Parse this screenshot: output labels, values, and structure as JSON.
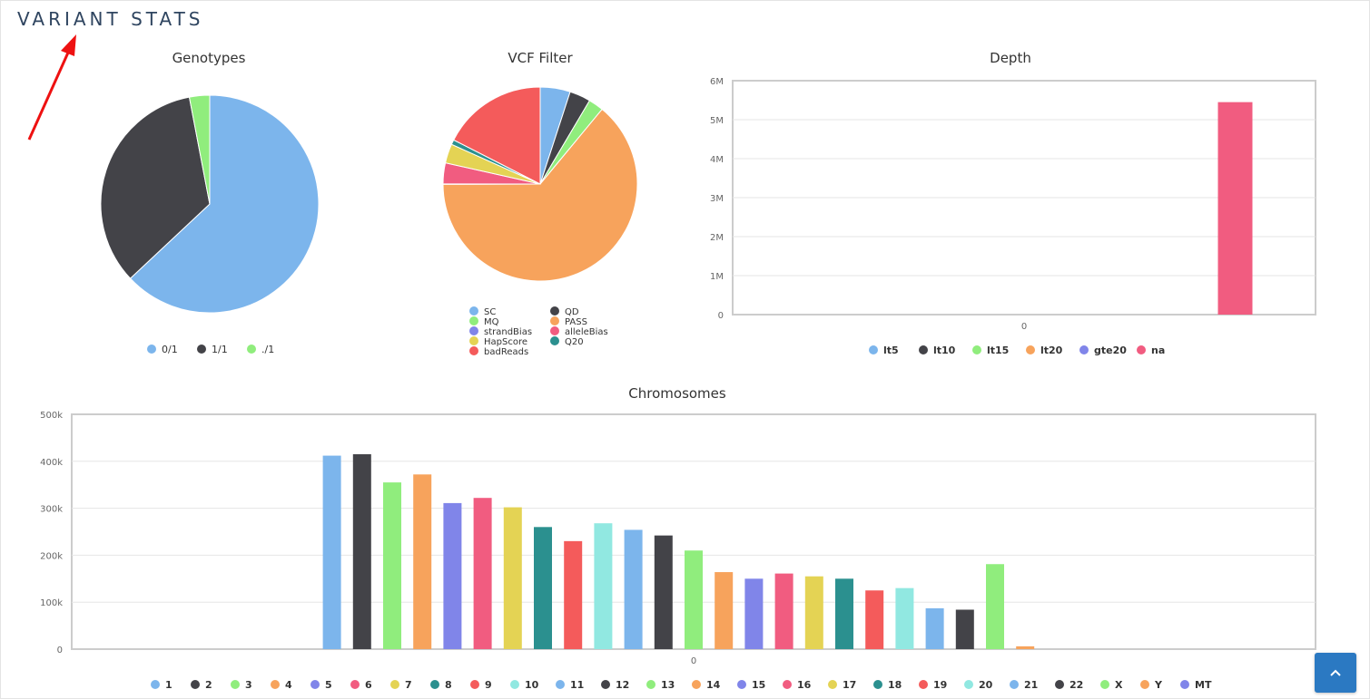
{
  "page": {
    "title": "VARIANT STATS"
  },
  "colors": {
    "palette": [
      "#7cb5ec",
      "#434348",
      "#90ed7d",
      "#f7a35c",
      "#8085e9",
      "#f15c80",
      "#e4d354",
      "#2b908f",
      "#f45b5b",
      "#91e8e1"
    ],
    "annotation_arrow": "#ee1111",
    "scroll_button": "#2b79c2"
  },
  "icons": {
    "scroll_top": "chevron-up-icon",
    "annotation": "red-arrow"
  },
  "chart_data": [
    {
      "id": "genotypes",
      "type": "pie",
      "title": "Genotypes",
      "legend": "bottom",
      "slices": [
        {
          "name": "0/1",
          "value": 63.0,
          "color": "#7cb5ec"
        },
        {
          "name": "1/1",
          "value": 34.0,
          "color": "#434348"
        },
        {
          "name": "./1",
          "value": 3.0,
          "color": "#90ed7d"
        }
      ]
    },
    {
      "id": "vcf_filter",
      "type": "pie",
      "title": "VCF Filter",
      "legend": "bottom",
      "slices": [
        {
          "name": "SC",
          "value": 5.0,
          "color": "#7cb5ec"
        },
        {
          "name": "QD",
          "value": 3.5,
          "color": "#434348"
        },
        {
          "name": "MQ",
          "value": 2.5,
          "color": "#90ed7d"
        },
        {
          "name": "PASS",
          "value": 64.0,
          "color": "#f7a35c"
        },
        {
          "name": "strandBias",
          "value": 0.05,
          "color": "#8085e9"
        },
        {
          "name": "alleleBias",
          "value": 3.5,
          "color": "#f15c80"
        },
        {
          "name": "HapScore",
          "value": 3.2,
          "color": "#e4d354"
        },
        {
          "name": "Q20",
          "value": 0.8,
          "color": "#2b908f"
        },
        {
          "name": "badReads",
          "value": 17.5,
          "color": "#f45b5b"
        }
      ]
    },
    {
      "id": "depth",
      "type": "bar",
      "title": "Depth",
      "legend": "bottom",
      "categories": [
        "0"
      ],
      "ylim": [
        0,
        6000000
      ],
      "yticks": [
        "0",
        "1M",
        "2M",
        "3M",
        "4M",
        "5M",
        "6M"
      ],
      "series": [
        {
          "name": "lt5",
          "value": 0,
          "color": "#7cb5ec"
        },
        {
          "name": "lt10",
          "value": 0,
          "color": "#434348"
        },
        {
          "name": "lt15",
          "value": 0,
          "color": "#90ed7d"
        },
        {
          "name": "lt20",
          "value": 0,
          "color": "#f7a35c"
        },
        {
          "name": "gte20",
          "value": 0,
          "color": "#8085e9"
        },
        {
          "name": "na",
          "value": 5450000,
          "color": "#f15c80"
        }
      ]
    },
    {
      "id": "chromosomes",
      "type": "bar",
      "title": "Chromosomes",
      "legend": "bottom",
      "categories": [
        "0"
      ],
      "ylim": [
        0,
        500000
      ],
      "yticks": [
        "0",
        "100k",
        "200k",
        "300k",
        "400k",
        "500k"
      ],
      "series": [
        {
          "name": "1",
          "value": 412000,
          "color": "#7cb5ec"
        },
        {
          "name": "2",
          "value": 415000,
          "color": "#434348"
        },
        {
          "name": "3",
          "value": 355000,
          "color": "#90ed7d"
        },
        {
          "name": "4",
          "value": 372000,
          "color": "#f7a35c"
        },
        {
          "name": "5",
          "value": 311000,
          "color": "#8085e9"
        },
        {
          "name": "6",
          "value": 322000,
          "color": "#f15c80"
        },
        {
          "name": "7",
          "value": 302000,
          "color": "#e4d354"
        },
        {
          "name": "8",
          "value": 260000,
          "color": "#2b908f"
        },
        {
          "name": "9",
          "value": 230000,
          "color": "#f45b5b"
        },
        {
          "name": "10",
          "value": 268000,
          "color": "#91e8e1"
        },
        {
          "name": "11",
          "value": 254000,
          "color": "#7cb5ec"
        },
        {
          "name": "12",
          "value": 242000,
          "color": "#434348"
        },
        {
          "name": "13",
          "value": 210000,
          "color": "#90ed7d"
        },
        {
          "name": "14",
          "value": 164000,
          "color": "#f7a35c"
        },
        {
          "name": "15",
          "value": 150000,
          "color": "#8085e9"
        },
        {
          "name": "16",
          "value": 161000,
          "color": "#f15c80"
        },
        {
          "name": "17",
          "value": 155000,
          "color": "#e4d354"
        },
        {
          "name": "18",
          "value": 150000,
          "color": "#2b908f"
        },
        {
          "name": "19",
          "value": 125000,
          "color": "#f45b5b"
        },
        {
          "name": "20",
          "value": 130000,
          "color": "#91e8e1"
        },
        {
          "name": "21",
          "value": 87000,
          "color": "#7cb5ec"
        },
        {
          "name": "22",
          "value": 84000,
          "color": "#434348"
        },
        {
          "name": "X",
          "value": 181000,
          "color": "#90ed7d"
        },
        {
          "name": "Y",
          "value": 6000,
          "color": "#f7a35c"
        },
        {
          "name": "MT",
          "value": 0,
          "color": "#8085e9"
        }
      ]
    }
  ]
}
